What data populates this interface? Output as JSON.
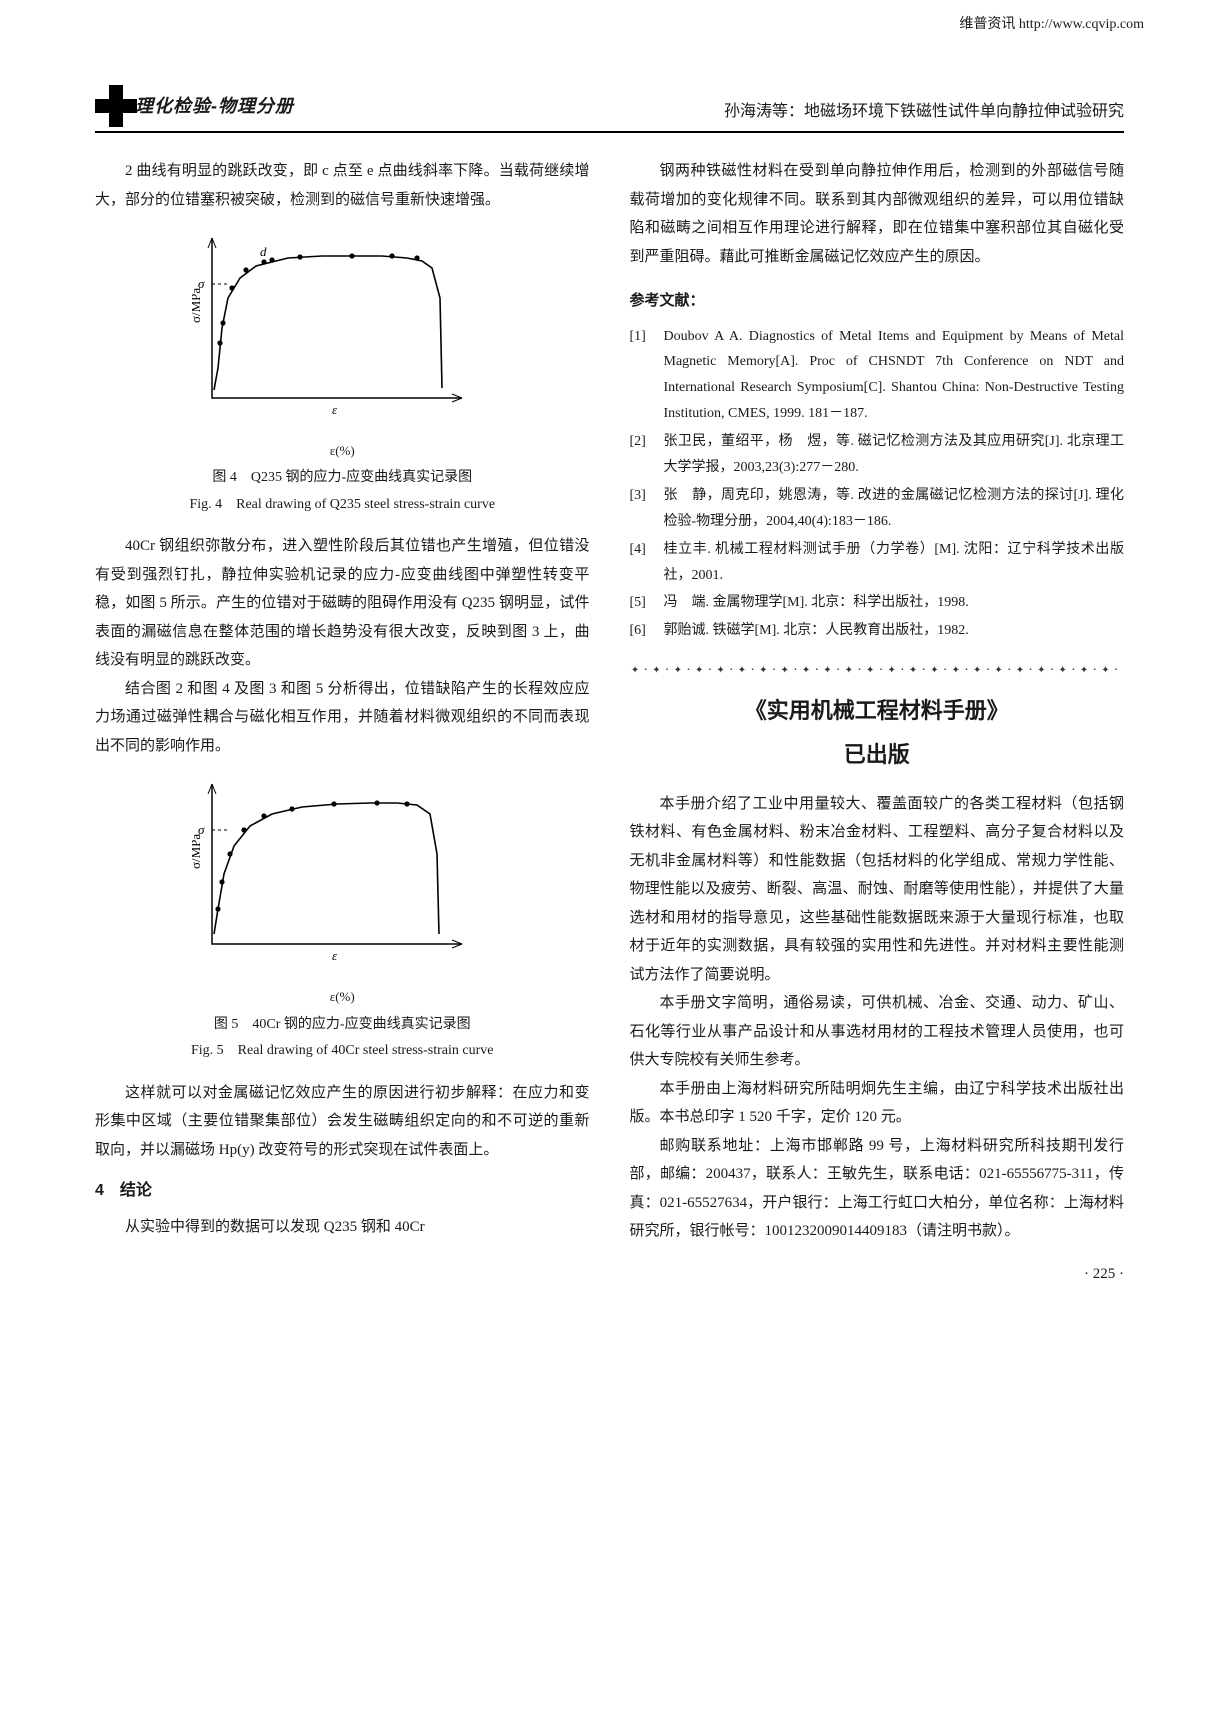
{
  "top_note": "维普资讯 http://www.cqvip.com",
  "journal_name": "理化检验-物理分册",
  "running_head": "孙海涛等：地磁场环境下铁磁性试件单向静拉伸试验研究",
  "left": {
    "p1": "2 曲线有明显的跳跃改变，即 c 点至 e 点曲线斜率下降。当载荷继续增大，部分的位错塞积被突破，检测到的磁信号重新快速增强。",
    "fig4": {
      "x_label": "ε",
      "x_unit": "ε(%)",
      "y_label": "σ/MPa",
      "marker_label": "d",
      "sigma_label": "σ",
      "caption_zh": "图 4　Q235 钢的应力-应变曲线真实记录图",
      "caption_en": "Fig. 4　Real drawing of Q235 steel stress-strain curve",
      "curve_points": [
        [
          22,
          162
        ],
        [
          26,
          140
        ],
        [
          30,
          100
        ],
        [
          36,
          70
        ],
        [
          48,
          50
        ],
        [
          64,
          38
        ],
        [
          96,
          30
        ],
        [
          130,
          28
        ],
        [
          165,
          28
        ],
        [
          190,
          28
        ],
        [
          215,
          30
        ],
        [
          230,
          33
        ],
        [
          240,
          40
        ],
        [
          248,
          70
        ],
        [
          250,
          160
        ]
      ],
      "markers": [
        [
          28,
          115
        ],
        [
          31,
          95
        ],
        [
          40,
          60
        ],
        [
          54,
          42
        ],
        [
          80,
          32
        ],
        [
          108,
          29
        ],
        [
          160,
          28
        ],
        [
          200,
          28
        ],
        [
          225,
          30
        ]
      ],
      "d_point": [
        72,
        34
      ],
      "axis_color": "#000000",
      "curve_color": "#000000"
    },
    "p2": "40Cr 钢组织弥散分布，进入塑性阶段后其位错也产生增殖，但位错没有受到强烈钉扎，静拉伸实验机记录的应力-应变曲线图中弹塑性转变平稳，如图 5 所示。产生的位错对于磁畴的阻碍作用没有 Q235 钢明显，试件表面的漏磁信息在整体范围的增长趋势没有很大改变，反映到图 3 上，曲线没有明显的跳跃改变。",
    "p3": "结合图 2 和图 4 及图 3 和图 5 分析得出，位错缺陷产生的长程效应应力场通过磁弹性耦合与磁化相互作用，并随着材料微观组织的不同而表现出不同的影响作用。",
    "fig5": {
      "x_label": "ε",
      "x_unit": "ε(%)",
      "y_label": "σ/MPa",
      "sigma_label": "σ",
      "caption_zh": "图 5　40Cr 钢的应力-应变曲线真实记录图",
      "caption_en": "Fig. 5　Real drawing of 40Cr steel stress-strain curve",
      "curve_points": [
        [
          22,
          160
        ],
        [
          26,
          135
        ],
        [
          32,
          100
        ],
        [
          42,
          72
        ],
        [
          58,
          52
        ],
        [
          80,
          40
        ],
        [
          110,
          33
        ],
        [
          145,
          30
        ],
        [
          178,
          29
        ],
        [
          205,
          29
        ],
        [
          225,
          31
        ],
        [
          238,
          40
        ],
        [
          245,
          80
        ],
        [
          247,
          160
        ]
      ],
      "markers": [
        [
          26,
          135
        ],
        [
          30,
          108
        ],
        [
          38,
          80
        ],
        [
          52,
          56
        ],
        [
          72,
          42
        ],
        [
          100,
          35
        ],
        [
          142,
          30
        ],
        [
          185,
          29
        ],
        [
          215,
          30
        ]
      ],
      "axis_color": "#000000",
      "curve_color": "#000000"
    },
    "p4": "这样就可以对金属磁记忆效应产生的原因进行初步解释：在应力和变形集中区域（主要位错聚集部位）会发生磁畴组织定向的和不可逆的重新取向，并以漏磁场 Hp(y) 改变符号的形式突现在试件表面上。",
    "sec4_heading": "4　结论",
    "p5": "从实验中得到的数据可以发现 Q235 钢和 40Cr"
  },
  "right": {
    "p1": "钢两种铁磁性材料在受到单向静拉伸作用后，检测到的外部磁信号随载荷增加的变化规律不同。联系到其内部微观组织的差异，可以用位错缺陷和磁畴之间相互作用理论进行解释，即在位错集中塞积部位其自磁化受到严重阻碍。藉此可推断金属磁记忆效应产生的原因。",
    "ref_heading": "参考文献：",
    "refs": [
      {
        "tag": "[1]",
        "body": "Doubov A A. Diagnostics of Metal Items and Equipment by Means of Metal Magnetic Memory[A]. Proc of CHSNDT 7th Conference on NDT and International Research Symposium[C]. Shantou China: Non-Destructive Testing Institution, CMES, 1999. 181－187."
      },
      {
        "tag": "[2]",
        "body": "张卫民，董绍平，杨　煜，等. 磁记忆检测方法及其应用研究[J]. 北京理工大学学报，2003,23(3):277－280."
      },
      {
        "tag": "[3]",
        "body": "张　静，周克印，姚恩涛，等. 改进的金属磁记忆检测方法的探讨[J]. 理化检验-物理分册，2004,40(4):183－186."
      },
      {
        "tag": "[4]",
        "body": "桂立丰. 机械工程材料测试手册（力学卷）[M]. 沈阳：辽宁科学技术出版社，2001."
      },
      {
        "tag": "[5]",
        "body": "冯　端. 金属物理学[M]. 北京：科学出版社，1998."
      },
      {
        "tag": "[6]",
        "body": "郭贻诚. 铁磁学[M]. 北京：人民教育出版社，1982."
      }
    ],
    "announce_title": "《实用机械工程材料手册》",
    "announce_sub": "已出版",
    "a_p1": "本手册介绍了工业中用量较大、覆盖面较广的各类工程材料（包括钢铁材料、有色金属材料、粉末冶金材料、工程塑料、高分子复合材料以及无机非金属材料等）和性能数据（包括材料的化学组成、常规力学性能、物理性能以及疲劳、断裂、高温、耐蚀、耐磨等使用性能），并提供了大量选材和用材的指导意见，这些基础性能数据既来源于大量现行标准，也取材于近年的实测数据，具有较强的实用性和先进性。并对材料主要性能测试方法作了简要说明。",
    "a_p2": "本手册文字简明，通俗易读，可供机械、冶金、交通、动力、矿山、石化等行业从事产品设计和从事选材用材的工程技术管理人员使用，也可供大专院校有关师生参考。",
    "a_p3": "本手册由上海材料研究所陆明炯先生主编，由辽宁科学技术出版社出版。本书总印字 1 520 千字，定价 120 元。",
    "a_p4": "邮购联系地址：上海市邯郸路 99 号，上海材料研究所科技期刊发行部，邮编：200437，联系人：王敏先生，联系电话：021-65556775-311，传真：021-65527634，开户银行：上海工行虹口大柏分，单位名称：上海材料研究所，银行帐号：1001232009014409183（请注明书款）。"
  },
  "page_num": "· 225 ·"
}
